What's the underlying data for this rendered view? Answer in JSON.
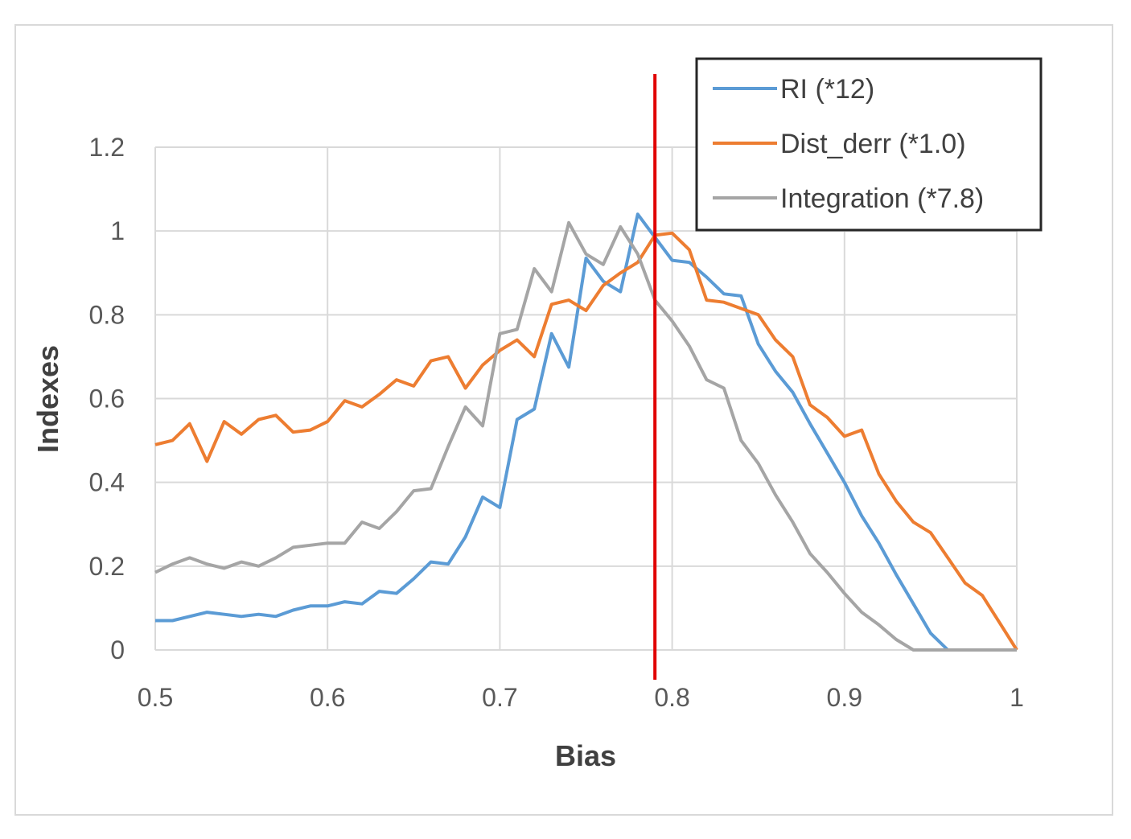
{
  "chart_data": {
    "type": "line",
    "xlabel": "Bias",
    "ylabel": "Indexes",
    "xlim": [
      0.5,
      1.0
    ],
    "ylim": [
      0,
      1.2
    ],
    "x_ticks": [
      "0.5",
      "0.6",
      "0.7",
      "0.8",
      "0.9",
      "1"
    ],
    "y_ticks": [
      "0",
      "0.2",
      "0.4",
      "0.6",
      "0.8",
      "1",
      "1.2"
    ],
    "grid": true,
    "legend_position": "top-right",
    "x": [
      0.5,
      0.51,
      0.52,
      0.53,
      0.54,
      0.55,
      0.56,
      0.57,
      0.58,
      0.59,
      0.6,
      0.61,
      0.62,
      0.63,
      0.64,
      0.65,
      0.66,
      0.67,
      0.68,
      0.69,
      0.7,
      0.71,
      0.72,
      0.73,
      0.74,
      0.75,
      0.76,
      0.77,
      0.78,
      0.79,
      0.8,
      0.81,
      0.82,
      0.83,
      0.84,
      0.85,
      0.86,
      0.87,
      0.88,
      0.89,
      0.9,
      0.91,
      0.92,
      0.93,
      0.94,
      0.95,
      0.96,
      0.97,
      0.98,
      0.99,
      1.0
    ],
    "series": [
      {
        "name": "RI (*12)",
        "color": "#5b9bd5",
        "values": [
          0.07,
          0.07,
          0.08,
          0.09,
          0.085,
          0.08,
          0.085,
          0.08,
          0.095,
          0.105,
          0.105,
          0.115,
          0.11,
          0.14,
          0.135,
          0.17,
          0.21,
          0.205,
          0.27,
          0.365,
          0.34,
          0.55,
          0.575,
          0.755,
          0.675,
          0.935,
          0.88,
          0.855,
          1.04,
          0.985,
          0.93,
          0.925,
          0.89,
          0.85,
          0.845,
          0.73,
          0.665,
          0.615,
          0.54,
          0.47,
          0.4,
          0.32,
          0.255,
          0.18,
          0.11,
          0.04,
          0.0,
          0.0,
          0.0,
          0.0,
          0.0
        ]
      },
      {
        "name": "Dist_derr (*1.0)",
        "color": "#ed7d31",
        "values": [
          0.49,
          0.5,
          0.54,
          0.45,
          0.545,
          0.515,
          0.55,
          0.56,
          0.52,
          0.525,
          0.545,
          0.595,
          0.58,
          0.61,
          0.645,
          0.63,
          0.69,
          0.7,
          0.625,
          0.68,
          0.715,
          0.74,
          0.7,
          0.825,
          0.835,
          0.81,
          0.87,
          0.9,
          0.925,
          0.99,
          0.995,
          0.955,
          0.835,
          0.83,
          0.815,
          0.8,
          0.74,
          0.7,
          0.585,
          0.555,
          0.51,
          0.525,
          0.42,
          0.355,
          0.305,
          0.28,
          0.22,
          0.16,
          0.13,
          0.065,
          0.0
        ]
      },
      {
        "name": "Integration (*7.8)",
        "color": "#a5a5a5",
        "values": [
          0.185,
          0.205,
          0.22,
          0.205,
          0.195,
          0.21,
          0.2,
          0.22,
          0.245,
          0.25,
          0.255,
          0.255,
          0.305,
          0.29,
          0.33,
          0.38,
          0.385,
          0.485,
          0.58,
          0.535,
          0.755,
          0.765,
          0.91,
          0.855,
          1.02,
          0.945,
          0.92,
          1.01,
          0.945,
          0.835,
          0.785,
          0.725,
          0.645,
          0.625,
          0.5,
          0.445,
          0.37,
          0.305,
          0.23,
          0.185,
          0.135,
          0.09,
          0.06,
          0.025,
          0.0,
          0.0,
          0.0,
          0.0,
          0.0,
          0.0,
          0.0
        ]
      }
    ],
    "marker_line": {
      "x": 0.79,
      "color": "#e00000"
    }
  }
}
